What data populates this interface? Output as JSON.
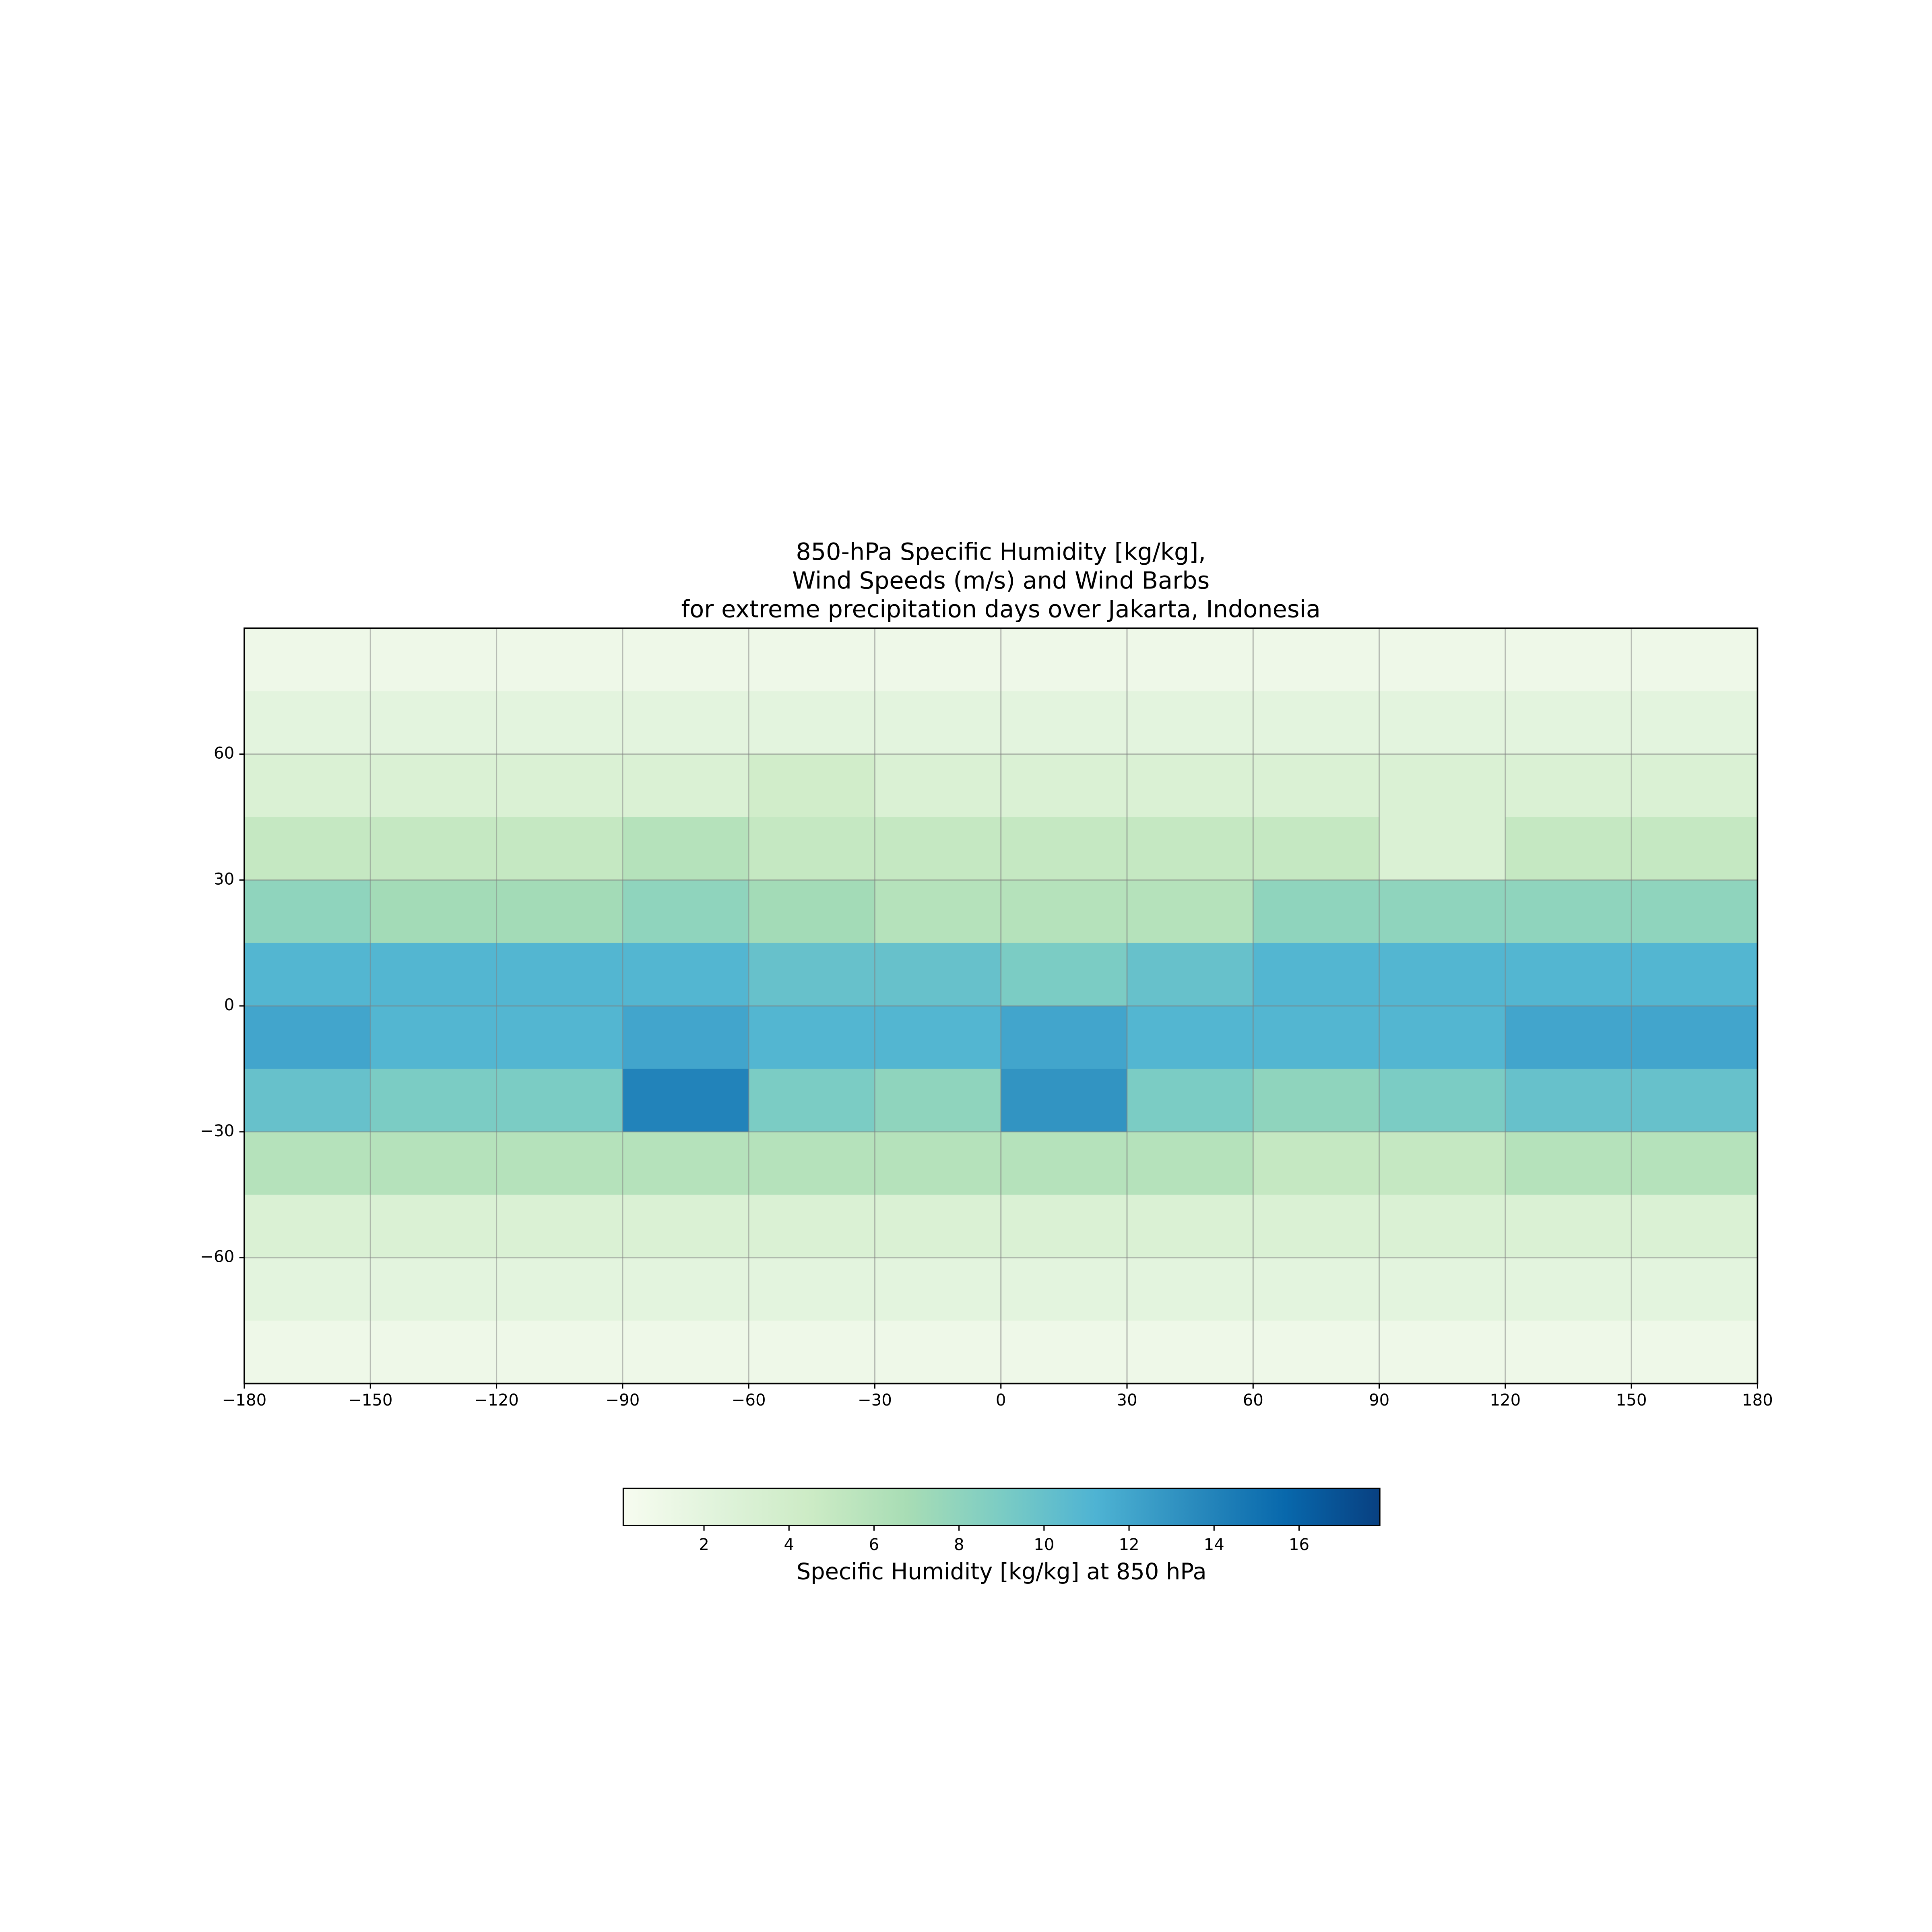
{
  "chart_data": {
    "type": "heatmap",
    "title": [
      "850-hPa Specific Humidity [kg/kg],",
      "Wind Speeds (m/s) and Wind Barbs",
      "for extreme precipitation days over Jakarta, Indonesia"
    ],
    "x": [
      -165,
      -135,
      -105,
      -75,
      -45,
      -15,
      15,
      45,
      75,
      105,
      135,
      165
    ],
    "y": [
      82.5,
      67.5,
      52.5,
      37.5,
      22.5,
      7.5,
      -7.5,
      -22.5,
      -37.5,
      -52.5,
      -67.5,
      -82.5
    ],
    "values": [
      [
        1,
        1,
        1,
        1,
        1,
        1,
        1,
        1,
        1,
        1,
        1,
        1
      ],
      [
        2,
        2,
        2,
        2,
        2,
        2,
        2,
        2,
        2,
        2,
        2,
        2
      ],
      [
        3,
        3,
        3,
        3,
        4,
        3,
        3,
        3,
        3,
        3,
        3,
        3
      ],
      [
        5,
        5,
        5,
        6,
        5,
        5,
        5,
        5,
        5,
        3,
        5,
        5
      ],
      [
        8,
        7,
        7,
        8,
        7,
        6,
        6,
        6,
        8,
        8,
        8,
        8
      ],
      [
        11,
        11,
        11,
        11,
        10,
        10,
        9,
        10,
        11,
        11,
        11,
        11
      ],
      [
        12,
        11,
        11,
        12,
        11,
        11,
        12,
        11,
        11,
        11,
        12,
        12
      ],
      [
        10,
        9,
        9,
        14,
        9,
        8,
        13,
        9,
        8,
        9,
        10,
        10
      ],
      [
        6,
        6,
        6,
        6,
        6,
        6,
        6,
        6,
        5,
        5,
        6,
        6
      ],
      [
        3,
        3,
        3,
        3,
        3,
        3,
        3,
        3,
        3,
        3,
        3,
        3
      ],
      [
        2,
        2,
        2,
        2,
        2,
        2,
        2,
        2,
        2,
        2,
        2,
        2
      ],
      [
        1,
        1,
        1,
        1,
        1,
        1,
        1,
        1,
        1,
        1,
        1,
        1
      ]
    ],
    "xlim": [
      -180,
      180
    ],
    "ylim": [
      -90,
      90
    ],
    "xticks": [
      {
        "value": -180,
        "label": "−180"
      },
      {
        "value": -150,
        "label": "−150"
      },
      {
        "value": -120,
        "label": "−120"
      },
      {
        "value": -90,
        "label": "−90"
      },
      {
        "value": -60,
        "label": "−60"
      },
      {
        "value": -30,
        "label": "−30"
      },
      0,
      30,
      60,
      90,
      120,
      150,
      180
    ],
    "yticks": [
      {
        "value": -60,
        "label": "−60"
      },
      {
        "value": -30,
        "label": "−30"
      },
      0,
      30,
      60
    ],
    "grid": true,
    "colormap": [
      "#f7fcf0",
      "#e0f3db",
      "#ccebc5",
      "#a8ddb5",
      "#7bccc4",
      "#4eb3d3",
      "#2b8cbe",
      "#0868ac",
      "#084081"
    ],
    "colorbar": {
      "label": "Specific Humidity [kg/kg] at 850 hPa",
      "lim": [
        0.1,
        17.9
      ],
      "ticks": [
        2,
        4,
        6,
        8,
        10,
        12,
        14,
        16
      ]
    }
  }
}
